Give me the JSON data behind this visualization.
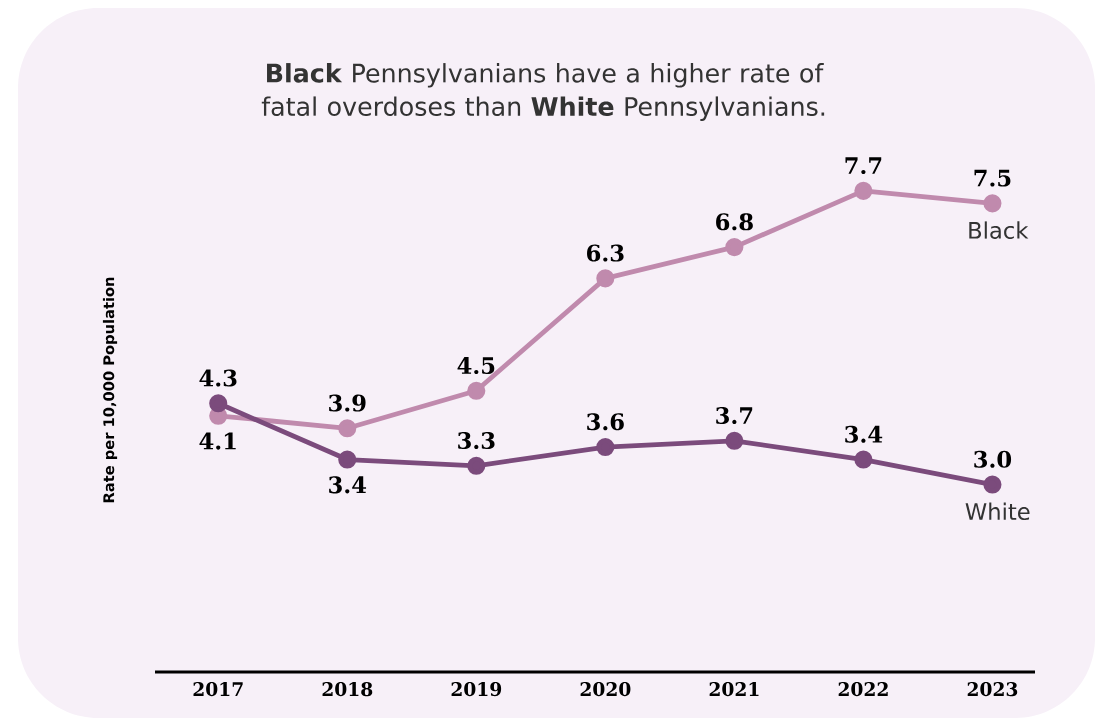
{
  "chart_data": {
    "type": "line",
    "title": "**Black** Pennsylvanians have a higher rate of fatal overdoses than **White** Pennsylvanians.",
    "ylabel": "Rate per 10,000 Population",
    "categories": [
      "2017",
      "2018",
      "2019",
      "2020",
      "2021",
      "2022",
      "2023"
    ],
    "series": [
      {
        "name": "Black",
        "color": "#c08aad",
        "values": [
          4.1,
          3.9,
          4.5,
          6.3,
          6.8,
          7.7,
          7.5
        ],
        "value_labels": [
          "4.1",
          "3.9",
          "4.5",
          "6.3",
          "6.8",
          "7.7",
          "7.5"
        ]
      },
      {
        "name": "White",
        "color": "#7b4b7c",
        "values": [
          4.3,
          3.4,
          3.3,
          3.6,
          3.7,
          3.4,
          3.0
        ],
        "value_labels": [
          "4.3",
          "3.4",
          "3.3",
          "3.6",
          "3.7",
          "3.4",
          "3.0"
        ]
      }
    ],
    "marker": "circle",
    "line_style": "solid",
    "legend": false
  }
}
